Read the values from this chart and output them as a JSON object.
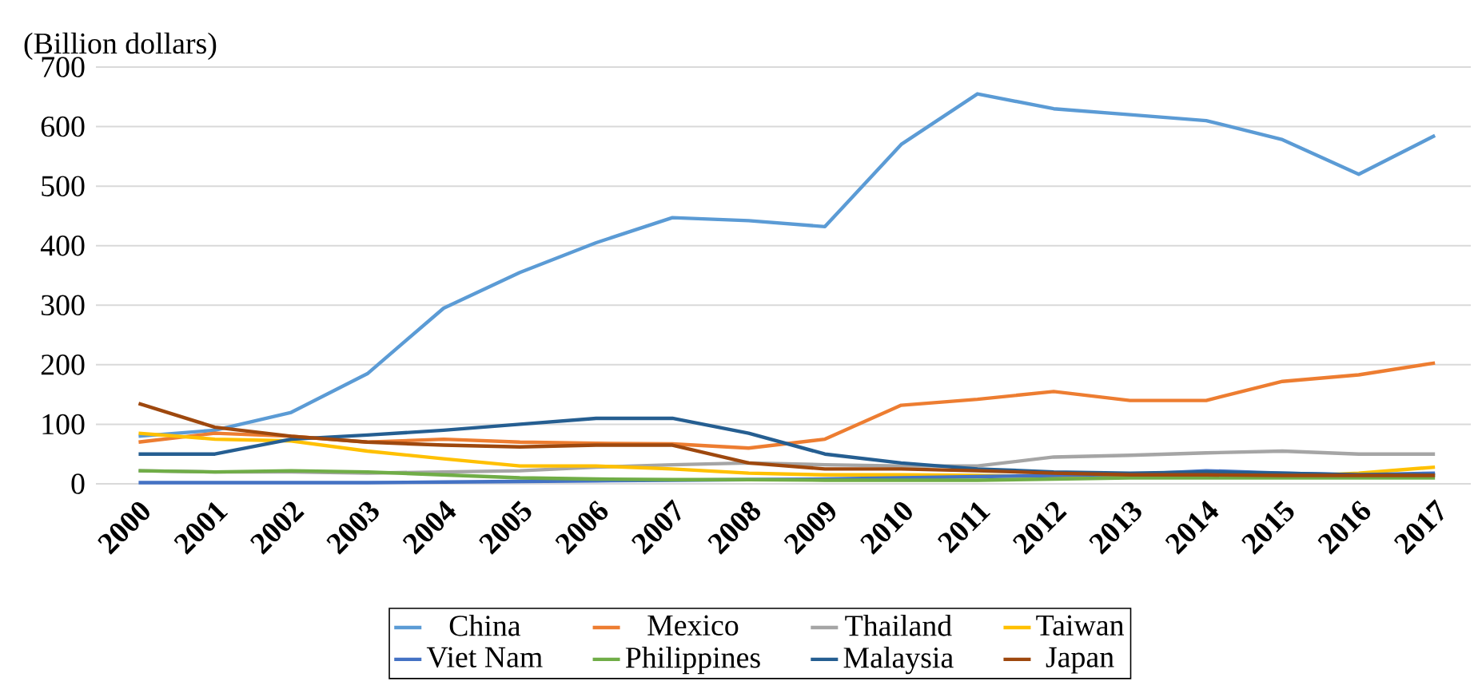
{
  "chart_data": {
    "type": "line",
    "ylabel": "(Billion dollars)",
    "categories": [
      "2000",
      "2001",
      "2002",
      "2003",
      "2004",
      "2005",
      "2006",
      "2007",
      "2008",
      "2009",
      "2010",
      "2011",
      "2012",
      "2013",
      "2014",
      "2015",
      "2016",
      "2017"
    ],
    "series": [
      {
        "name": "China",
        "color": "#5b9bd5",
        "values": [
          80,
          90,
          120,
          185,
          295,
          355,
          405,
          447,
          442,
          432,
          570,
          655,
          630,
          620,
          610,
          578,
          520,
          585
        ]
      },
      {
        "name": "Mexico",
        "color": "#ed7d31",
        "values": [
          70,
          85,
          80,
          70,
          75,
          70,
          68,
          67,
          60,
          75,
          132,
          142,
          155,
          140,
          140,
          172,
          183,
          203
        ]
      },
      {
        "name": "Thailand",
        "color": "#a5a5a5",
        "values": [
          22,
          20,
          20,
          18,
          20,
          22,
          28,
          32,
          35,
          32,
          30,
          30,
          45,
          48,
          52,
          55,
          50,
          50
        ]
      },
      {
        "name": "Taiwan",
        "color": "#ffc000",
        "values": [
          85,
          75,
          72,
          55,
          42,
          30,
          30,
          25,
          18,
          15,
          15,
          14,
          12,
          12,
          12,
          12,
          18,
          28
        ]
      },
      {
        "name": "Viet Nam",
        "color": "#4472c4",
        "values": [
          2,
          2,
          2,
          2,
          3,
          4,
          5,
          6,
          7,
          8,
          10,
          12,
          14,
          16,
          22,
          18,
          15,
          18
        ]
      },
      {
        "name": "Philippines",
        "color": "#70ad47",
        "values": [
          22,
          20,
          22,
          20,
          15,
          10,
          8,
          7,
          7,
          6,
          6,
          6,
          8,
          10,
          10,
          10,
          10,
          10
        ]
      },
      {
        "name": "Malaysia",
        "color": "#255e91",
        "values": [
          50,
          50,
          75,
          82,
          90,
          100,
          110,
          110,
          85,
          50,
          35,
          25,
          20,
          18,
          20,
          18,
          15,
          15
        ]
      },
      {
        "name": "Japan",
        "color": "#9e480e",
        "values": [
          135,
          95,
          80,
          70,
          65,
          62,
          65,
          65,
          35,
          25,
          25,
          22,
          18,
          15,
          15,
          14,
          14,
          14
        ]
      }
    ],
    "ylim": [
      0,
      700
    ],
    "yticks": [
      0,
      100,
      200,
      300,
      400,
      500,
      600,
      700
    ],
    "grid": "y",
    "legend": "bottom",
    "marker": "none",
    "line_style": "solid"
  }
}
